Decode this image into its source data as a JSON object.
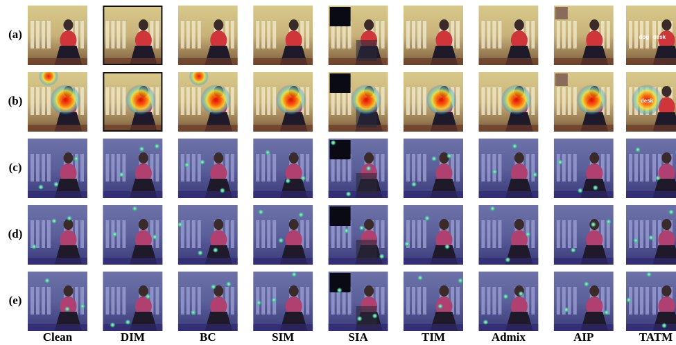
{
  "figure": {
    "columns": [
      "Clean",
      "DIM",
      "BC",
      "SIM",
      "SIA",
      "TIM",
      "Admix",
      "AIP",
      "TATM"
    ],
    "rows": [
      {
        "label": "(a)",
        "cell_texts": [
          [],
          [],
          [],
          [],
          [],
          [],
          [],
          [],
          [
            "dog",
            "desk"
          ]
        ]
      },
      {
        "label": "(b)",
        "cell_texts": [
          [],
          [],
          [],
          [],
          [],
          [],
          [],
          [],
          [
            "desk"
          ]
        ]
      },
      {
        "label": "(c)",
        "cell_texts": [
          [],
          [],
          [],
          [],
          [],
          [],
          [],
          [],
          []
        ]
      },
      {
        "label": "(d)",
        "cell_texts": [
          [],
          [],
          [],
          [],
          [],
          [],
          [],
          [],
          []
        ]
      },
      {
        "label": "(e)",
        "cell_texts": [
          [],
          [],
          [],
          [],
          [],
          [],
          [],
          [],
          []
        ]
      }
    ]
  }
}
